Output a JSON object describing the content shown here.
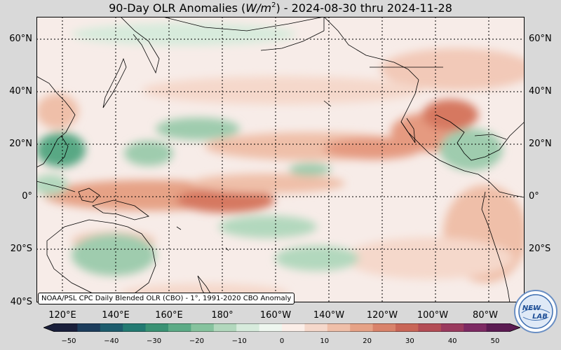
{
  "title": {
    "prefix": "90-Day OLR Anomalies (",
    "unit_italic": "W/m",
    "unit_exp": "2",
    "suffix": ") - 2024-08-30 thru 2024-11-28"
  },
  "source_note": "NOAA/PSL CPC Daily Blended OLR (CBO) - 1°, 1991-2020 CBO Anomaly",
  "lat_labels": [
    "60°N",
    "40°N",
    "20°N",
    "0°",
    "20°S",
    "40°S"
  ],
  "lon_labels": [
    "120°E",
    "140°E",
    "160°E",
    "180°",
    "160°W",
    "140°W",
    "120°W",
    "100°W",
    "80°W"
  ],
  "colorbar": {
    "ticks": [
      "−50",
      "−40",
      "−30",
      "−20",
      "−10",
      "0",
      "10",
      "20",
      "30",
      "40",
      "50"
    ],
    "negative_colors": [
      "#1a1f3b",
      "#1d3d5c",
      "#1d5c6d",
      "#237a72",
      "#3a9274",
      "#5cab86",
      "#86c39e",
      "#b2d8bd",
      "#d7ebdc",
      "#eef6ef"
    ],
    "positive_colors": [
      "#fbeee8",
      "#f5d8cb",
      "#efbfa9",
      "#e6a286",
      "#d9836b",
      "#c96657",
      "#b34d55",
      "#9a3a5e",
      "#7d2a63",
      "#5b1b52"
    ]
  },
  "logo": {
    "text_top": "NEW",
    "text_bottom": "LAB"
  },
  "map_colors": {
    "background": "#f7ece8",
    "land_outline": "#000000",
    "grid": "#000000",
    "positive_light": "#f2c9b8",
    "positive_mid": "#e59a80",
    "positive_strong": "#d67860",
    "negative_light": "#d6ead9",
    "negative_mid": "#9fccae",
    "negative_strong": "#58a884"
  }
}
